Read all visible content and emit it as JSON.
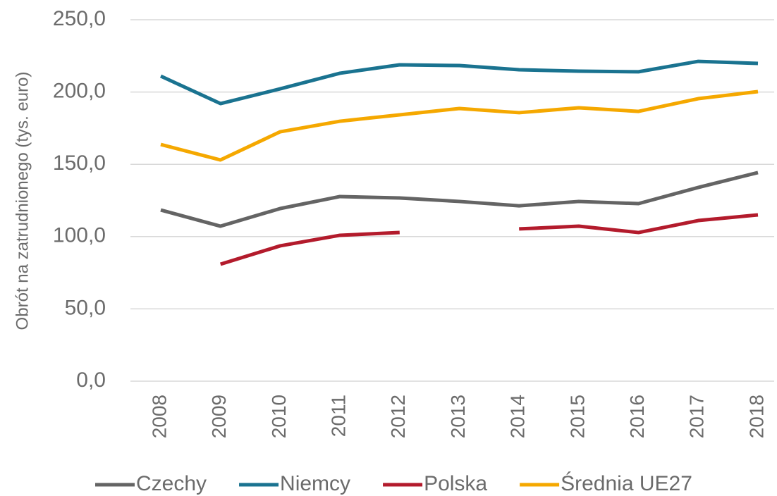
{
  "chart_data": {
    "type": "line",
    "y_axis_label": "Obrót na zatrudnionego (tys. euro)",
    "categories": [
      "2008",
      "2009",
      "2010",
      "2011",
      "2012",
      "2013",
      "2014",
      "2015",
      "2016",
      "2017",
      "2018"
    ],
    "series": [
      {
        "name": "Czechy",
        "color": "#646464",
        "values": [
          118.4,
          107.2,
          119.4,
          127.7,
          126.7,
          124.3,
          121.3,
          124.3,
          122.8,
          134.0,
          144.3
        ]
      },
      {
        "name": "Niemcy",
        "color": "#1a7390",
        "values": [
          211.0,
          192.0,
          202.2,
          213.0,
          218.8,
          218.3,
          215.4,
          214.4,
          214.0,
          221.2,
          219.8
        ]
      },
      {
        "name": "Polska",
        "color": "#b31b2c",
        "values": [
          null,
          80.9,
          93.6,
          100.9,
          102.8,
          null,
          105.3,
          107.2,
          102.8,
          111.1,
          115.0
        ]
      },
      {
        "name": "Średnia UE27",
        "color": "#f5a800",
        "values": [
          163.7,
          153.0,
          172.5,
          179.8,
          184.2,
          188.6,
          185.7,
          189.1,
          186.6,
          195.4,
          200.3
        ]
      }
    ],
    "ylim": [
      0,
      250
    ],
    "yticks": [
      {
        "value": 0,
        "label": "0,0"
      },
      {
        "value": 50,
        "label": "50,0"
      },
      {
        "value": 100,
        "label": "100,0"
      },
      {
        "value": 150,
        "label": "150,0"
      },
      {
        "value": 200,
        "label": "200,0"
      },
      {
        "value": 250,
        "label": "250,0"
      }
    ],
    "grid": true,
    "legend": "bottom"
  }
}
